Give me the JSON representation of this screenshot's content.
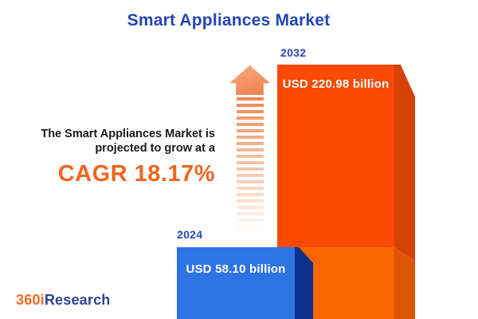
{
  "title": "Smart Appliances Market",
  "promo": {
    "line1": "The Smart Appliances Market is",
    "line2": "projected to grow at a",
    "cagr": "CAGR 18.17%"
  },
  "chart_data": {
    "type": "bar",
    "title": "Smart Appliances Market",
    "categories": [
      "2024",
      "2032"
    ],
    "values": [
      58.1,
      220.98
    ],
    "unit": "USD billion",
    "value_labels": [
      "USD 58.10 billion",
      "USD 220.98 billion"
    ],
    "cagr_percent": 18.17,
    "orientation": "vertical",
    "legend": "none",
    "bar_colors": {
      "2024": "#2f72e3",
      "2032": "#fa4a06"
    }
  },
  "bars": [
    {
      "year": "2024",
      "value_label": "USD 58.10 billion"
    },
    {
      "year": "2032",
      "value_label": "USD 220.98 billion"
    }
  ],
  "logo": {
    "part1": "360i",
    "part2": "Research"
  },
  "colors": {
    "title_blue": "#2445b2",
    "year_label_blue": "#2a48ac",
    "cagr_orange": "#f0661f",
    "body_text_dark": "#191919",
    "bar_2024_front": "#2f72e3",
    "bar_2024_side": "#0a3189",
    "bar_2032_front_upper": "#fa4a06",
    "bar_2032_front_lower": "#fa6502",
    "bar_2032_side_upper": "#d64104",
    "bar_2032_side_lower": "#dc5503",
    "arrow_orange": "#ee8952",
    "logo_orange": "#f06a22",
    "logo_navy": "#2b4390",
    "value_text_white": "#ffffff",
    "background": "#ffffff"
  }
}
